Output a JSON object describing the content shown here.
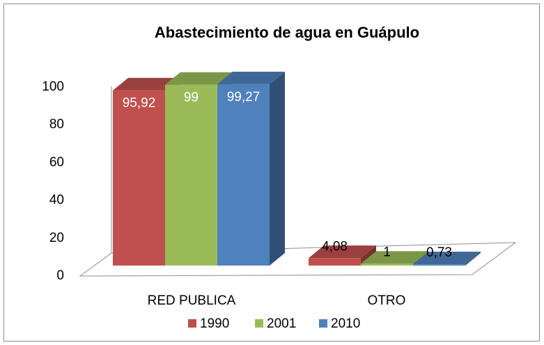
{
  "chart_data": {
    "type": "bar3d",
    "title": "Abastecimiento de agua en Guápulo",
    "categories": [
      "RED PUBLICA",
      "OTRO"
    ],
    "series": [
      {
        "name": "1990",
        "color": "#c0504d",
        "values": [
          95.92,
          4.08
        ],
        "value_labels": [
          "95,92",
          "4,08"
        ]
      },
      {
        "name": "2001",
        "color": "#9bbb59",
        "values": [
          99,
          1
        ]
      },
      {
        "name": "2010",
        "color": "#4f81bd",
        "values": [
          99.27,
          0.73
        ],
        "value_labels": [
          "99,27",
          "0,73"
        ]
      }
    ],
    "ylim": [
      0,
      100
    ],
    "yticks": [
      0,
      20,
      40,
      60,
      80,
      100
    ],
    "legend": "bottom"
  }
}
